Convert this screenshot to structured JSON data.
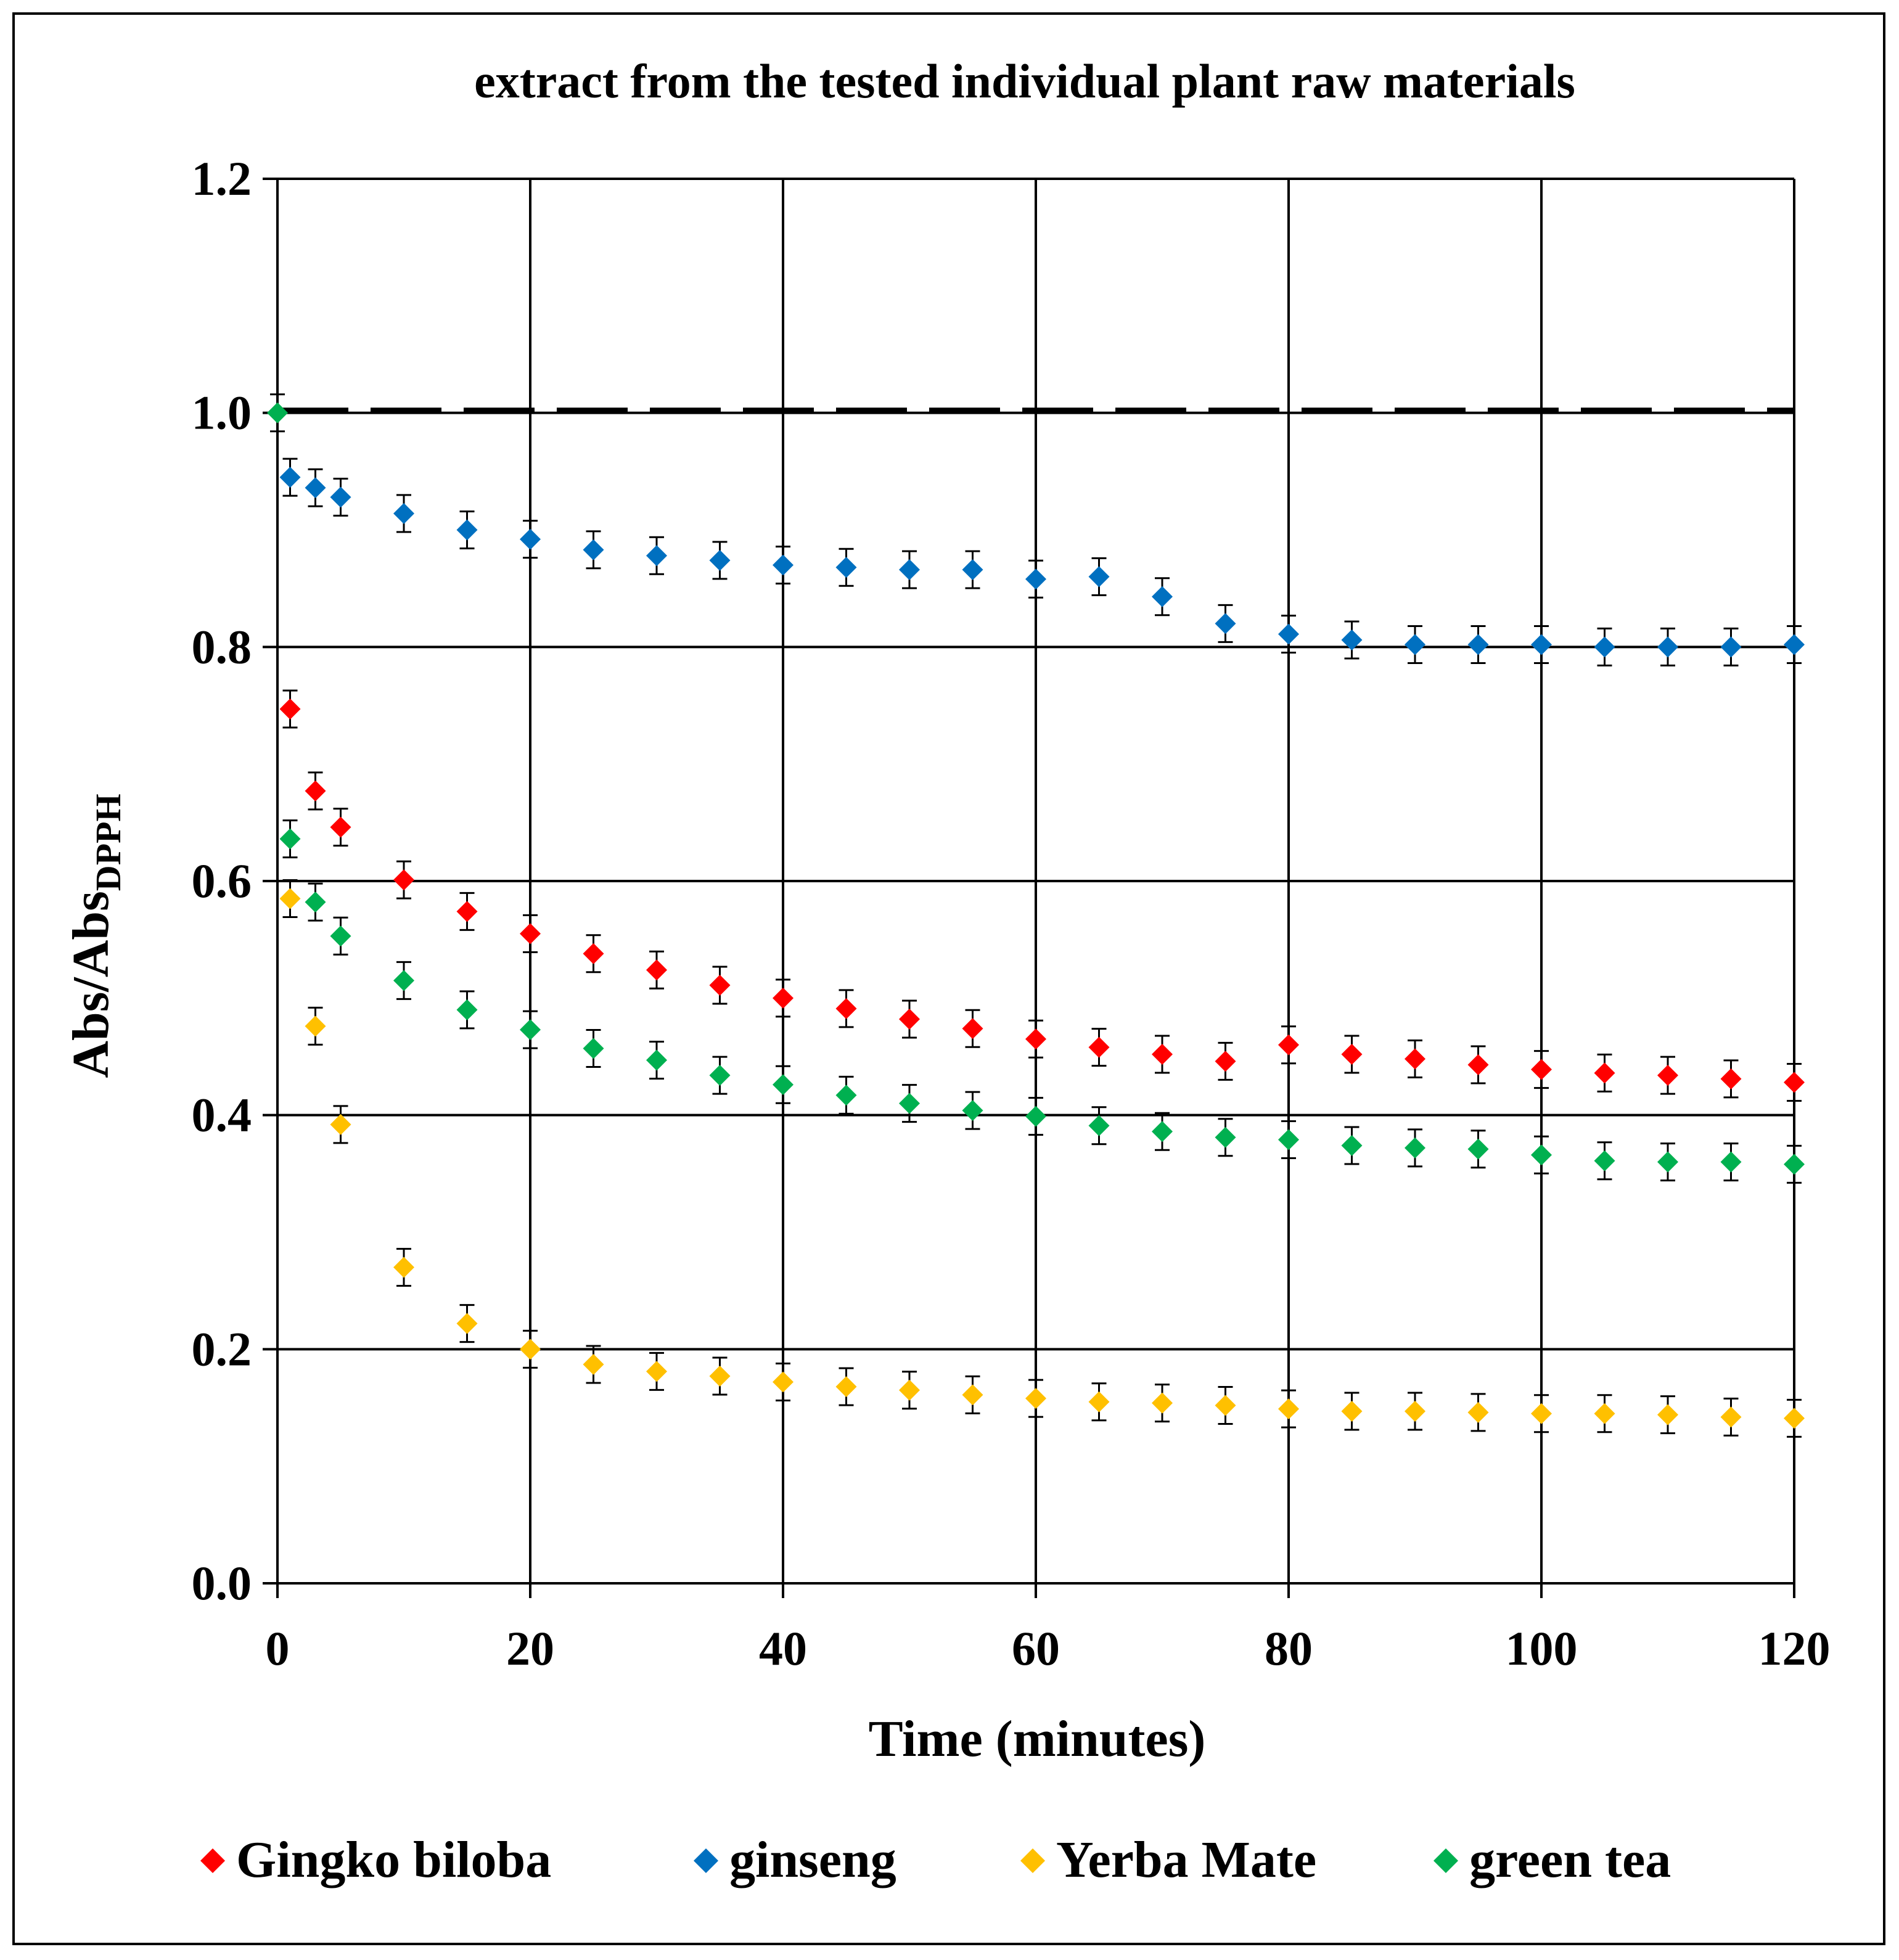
{
  "chart_data": {
    "type": "scatter",
    "title": "extract from the tested individual plant raw materials",
    "xlabel": "Time (minutes)",
    "ylabel_main": "Abs/Abs",
    "ylabel_sub": "DPPH",
    "xlim": [
      0,
      120
    ],
    "ylim": [
      0,
      1.2
    ],
    "x_ticks": [
      "0",
      "20",
      "40",
      "60",
      "80",
      "100",
      "120"
    ],
    "y_ticks": [
      "0.0",
      "0.2",
      "0.4",
      "0.6",
      "0.8",
      "1.0",
      "1.2"
    ],
    "grid": true,
    "legend_position": "bottom",
    "reference_line_y": 1.0,
    "x": [
      0,
      1,
      3,
      5,
      10,
      15,
      20,
      25,
      30,
      35,
      40,
      45,
      50,
      55,
      60,
      65,
      70,
      75,
      80,
      85,
      90,
      95,
      100,
      105,
      110,
      115,
      120
    ],
    "series": [
      {
        "name": "Gingko biloba",
        "color": "#ff0000",
        "values": [
          null,
          0.747,
          0.677,
          0.646,
          0.601,
          0.574,
          0.555,
          0.538,
          0.524,
          0.511,
          0.5,
          0.491,
          0.482,
          0.474,
          0.465,
          0.458,
          0.452,
          0.446,
          0.46,
          0.452,
          0.448,
          0.443,
          0.439,
          0.436,
          0.434,
          0.431,
          0.428
        ]
      },
      {
        "name": "ginseng",
        "color": "#0070c0",
        "values": [
          null,
          0.945,
          0.936,
          0.928,
          0.914,
          0.9,
          0.892,
          0.883,
          0.878,
          0.874,
          0.87,
          0.868,
          0.866,
          0.866,
          0.858,
          0.86,
          0.843,
          0.82,
          0.811,
          0.806,
          0.802,
          0.802,
          0.802,
          0.8,
          0.8,
          0.8,
          0.802
        ]
      },
      {
        "name": "Yerba Mate",
        "color": "#ffc000",
        "values": [
          null,
          0.585,
          0.476,
          0.392,
          0.27,
          0.222,
          0.2,
          0.187,
          0.181,
          0.177,
          0.172,
          0.168,
          0.165,
          0.161,
          0.158,
          0.155,
          0.154,
          0.152,
          0.149,
          0.147,
          0.147,
          0.146,
          0.145,
          0.145,
          0.144,
          0.142,
          0.141
        ]
      },
      {
        "name": "green tea",
        "color": "#00b050",
        "values": [
          1.0,
          0.636,
          0.582,
          0.553,
          0.515,
          0.49,
          0.473,
          0.457,
          0.447,
          0.434,
          0.426,
          0.417,
          0.41,
          0.404,
          0.399,
          0.391,
          0.386,
          0.381,
          0.379,
          0.374,
          0.372,
          0.371,
          0.366,
          0.361,
          0.36,
          0.36,
          0.358
        ]
      }
    ]
  }
}
